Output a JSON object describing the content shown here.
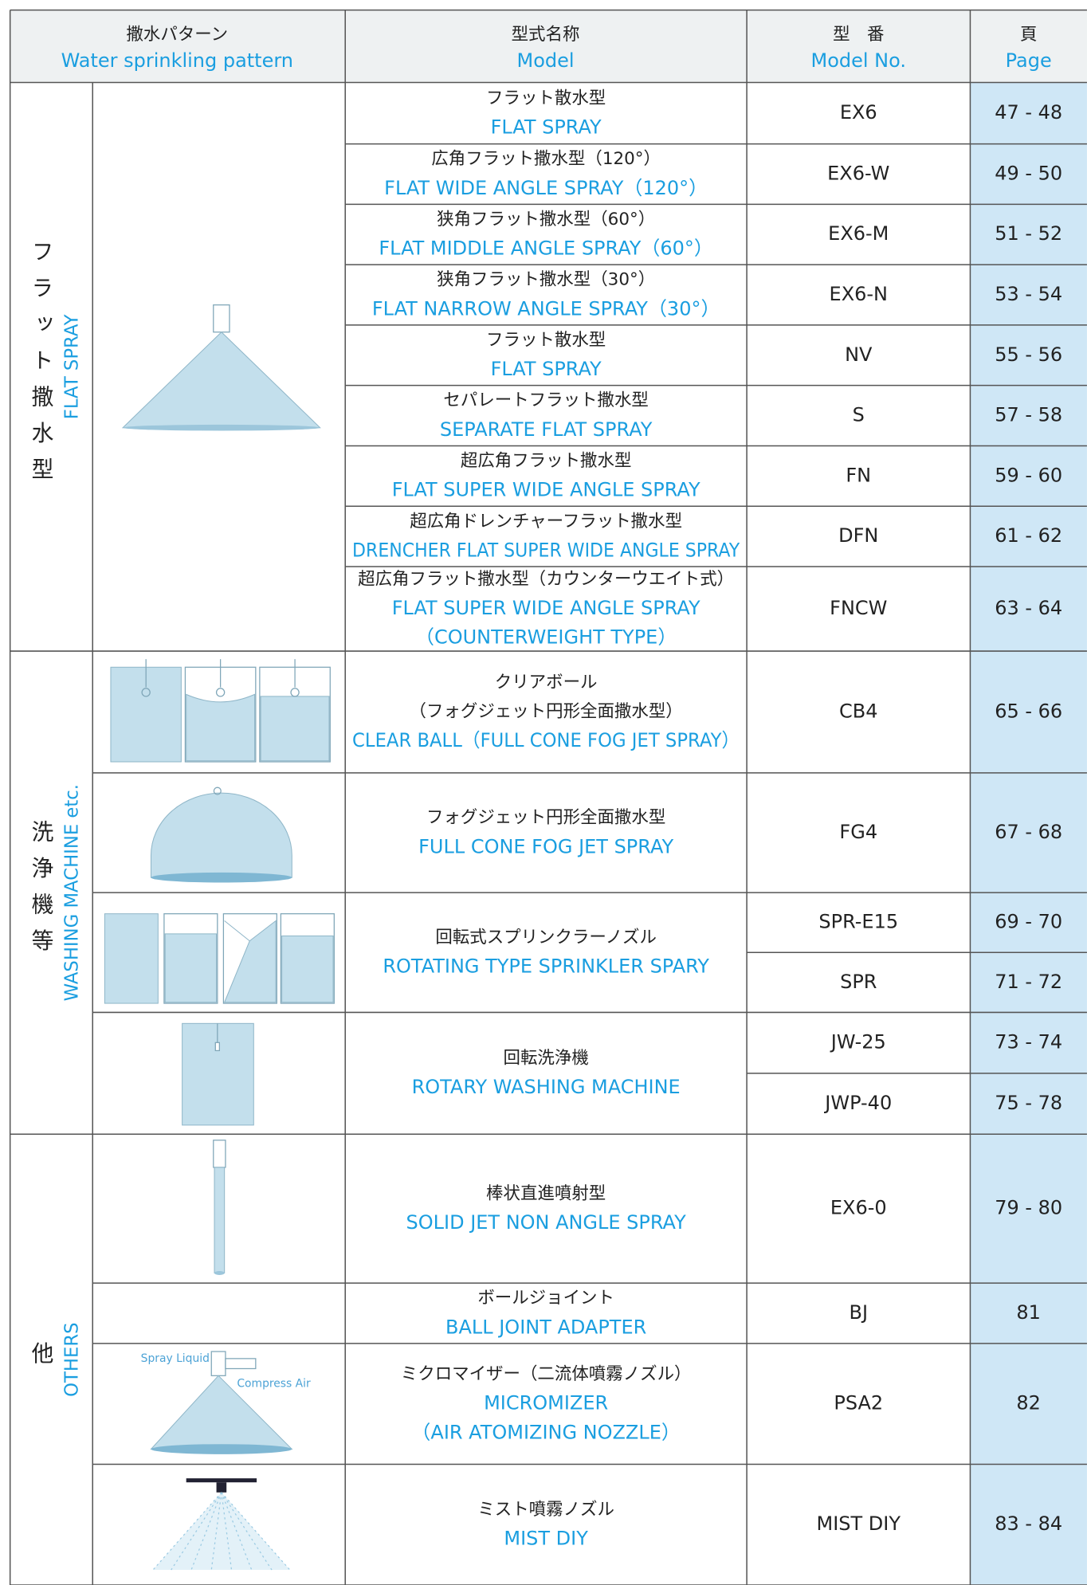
{
  "header": {
    "pattern_ja": "撒水パターン",
    "pattern_en": "Water sprinkling pattern",
    "model_ja": "型式名称",
    "model_en": "Model",
    "model_no_ja": "型　番",
    "model_no_en": "Model No.",
    "page_ja": "頁",
    "page_en": "Page"
  },
  "groups": [
    {
      "label_ja": "フラット撒水型",
      "label_en": "FLAT SPRAY",
      "rows": [
        {
          "model_ja": [
            "フラット散水型"
          ],
          "model_en": [
            "FLAT SPRAY"
          ],
          "items": [
            {
              "model_no": "EX6",
              "page": "47 - 48"
            }
          ]
        },
        {
          "model_ja": [
            "広角フラット撒水型（120°）"
          ],
          "model_en": [
            "FLAT WIDE ANGLE SPRAY（120°）"
          ],
          "items": [
            {
              "model_no": "EX6-W",
              "page": "49 - 50"
            }
          ]
        },
        {
          "model_ja": [
            "狭角フラット撒水型（60°）"
          ],
          "model_en": [
            "FLAT MIDDLE ANGLE SPRAY（60°）"
          ],
          "items": [
            {
              "model_no": "EX6-M",
              "page": "51 - 52"
            }
          ]
        },
        {
          "model_ja": [
            "狭角フラット撒水型（30°）"
          ],
          "model_en": [
            "FLAT NARROW ANGLE SPRAY（30°）"
          ],
          "items": [
            {
              "model_no": "EX6-N",
              "page": "53 - 54"
            }
          ]
        },
        {
          "model_ja": [
            "フラット散水型"
          ],
          "model_en": [
            "FLAT SPRAY"
          ],
          "items": [
            {
              "model_no": "NV",
              "page": "55 - 56"
            }
          ]
        },
        {
          "model_ja": [
            "セパレートフラット撒水型"
          ],
          "model_en": [
            "SEPARATE FLAT SPRAY"
          ],
          "items": [
            {
              "model_no": "S",
              "page": "57 - 58"
            }
          ]
        },
        {
          "model_ja": [
            "超広角フラット撒水型"
          ],
          "model_en": [
            "FLAT SUPER WIDE ANGLE SPRAY"
          ],
          "items": [
            {
              "model_no": "FN",
              "page": "59 - 60"
            }
          ]
        },
        {
          "model_ja": [
            "超広角ドレンチャーフラット撒水型"
          ],
          "model_en": [
            "DRENCHER FLAT SUPER WIDE ANGLE SPRAY"
          ],
          "items": [
            {
              "model_no": "DFN",
              "page": "61 - 62"
            }
          ]
        },
        {
          "model_ja": [
            "超広角フラット撒水型（カウンターウエイト式）"
          ],
          "model_en": [
            "FLAT SUPER WIDE ANGLE SPRAY",
            "（COUNTERWEIGHT TYPE）"
          ],
          "items": [
            {
              "model_no": "FNCW",
              "page": "63 - 64"
            }
          ]
        }
      ]
    },
    {
      "label_ja": "洗浄機等",
      "label_en": "WASHING MACHINE etc.",
      "rows": [
        {
          "model_ja": [
            "クリアボール",
            "（フォグジェット円形全面撒水型）"
          ],
          "model_en": [
            "CLEAR BALL（FULL CONE FOG JET SPRAY）"
          ],
          "items": [
            {
              "model_no": "CB4",
              "page": "65 - 66"
            }
          ]
        },
        {
          "model_ja": [
            "フォグジェット円形全面撒水型"
          ],
          "model_en": [
            "FULL CONE FOG JET SPRAY"
          ],
          "items": [
            {
              "model_no": "FG4",
              "page": "67 - 68"
            }
          ]
        },
        {
          "model_ja": [
            "回転式スプリンクラーノズル"
          ],
          "model_en": [
            "ROTATING TYPE SPRINKLER SPARY"
          ],
          "items": [
            {
              "model_no": "SPR-E15",
              "page": "69 - 70"
            },
            {
              "model_no": "SPR",
              "page": "71 - 72"
            }
          ]
        },
        {
          "model_ja": [
            "回転洗浄機"
          ],
          "model_en": [
            "ROTARY WASHING MACHINE"
          ],
          "items": [
            {
              "model_no": "JW-25",
              "page": "73 - 74"
            },
            {
              "model_no": "JWP-40",
              "page": "75 - 78"
            }
          ]
        }
      ]
    },
    {
      "label_ja": "他",
      "label_en": "OTHERS",
      "rows": [
        {
          "model_ja": [
            "棒状直進噴射型"
          ],
          "model_en": [
            "SOLID JET NON ANGLE SPRAY"
          ],
          "items": [
            {
              "model_no": "EX6-0",
              "page": "79 - 80"
            }
          ]
        },
        {
          "model_ja": [
            "ボールジョイント"
          ],
          "model_en": [
            "BALL JOINT ADAPTER"
          ],
          "items": [
            {
              "model_no": "BJ",
              "page": "81"
            }
          ]
        },
        {
          "model_ja": [
            "ミクロマイザー（二流体噴霧ノズル）"
          ],
          "model_en": [
            "MICROMIZER",
            "（AIR ATOMIZING NOZZLE）"
          ],
          "items": [
            {
              "model_no": "PSA2",
              "page": "82"
            }
          ]
        },
        {
          "model_ja": [
            "ミスト噴霧ノズル"
          ],
          "model_en": [
            "MIST DIY"
          ],
          "items": [
            {
              "model_no": "MIST DIY",
              "page": "83 - 84"
            }
          ]
        }
      ]
    }
  ],
  "annotations": {
    "spray_liquid": "Spray Liquid",
    "compress_air": "Compress Air"
  }
}
